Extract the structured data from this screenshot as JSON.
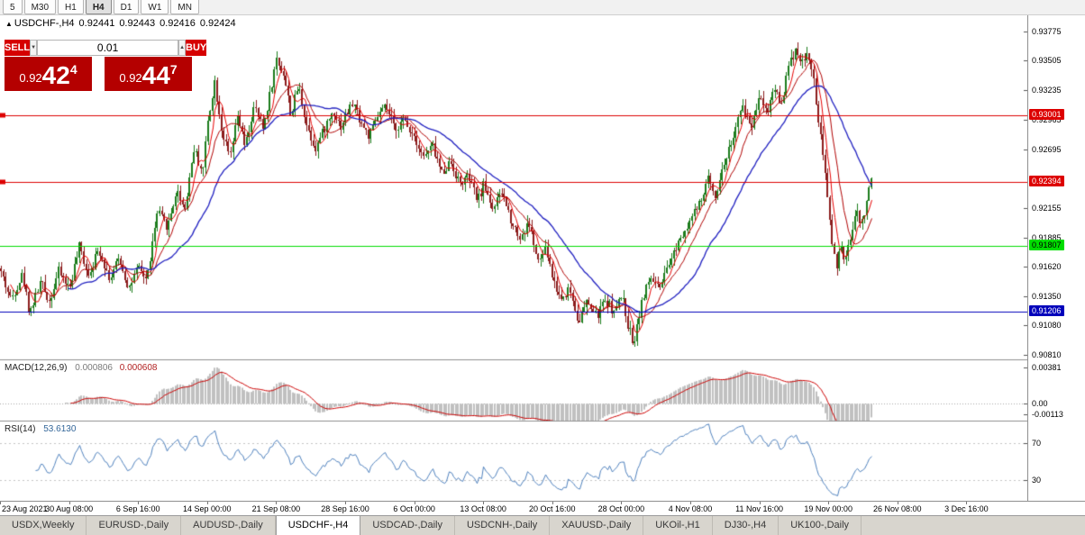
{
  "toolbar": {
    "timeframes": [
      {
        "label": "5",
        "active": false
      },
      {
        "label": "M30",
        "active": false
      },
      {
        "label": "H1",
        "active": false
      },
      {
        "label": "H4",
        "active": true
      },
      {
        "label": "D1",
        "active": false
      },
      {
        "label": "W1",
        "active": false
      },
      {
        "label": "MN",
        "active": false
      }
    ]
  },
  "chart_header": {
    "symbol": "USDCHF-,H4",
    "open": "0.92441",
    "high": "0.92443",
    "low": "0.92416",
    "close": "0.92424"
  },
  "trade_panel": {
    "sell_label": "SELL",
    "buy_label": "BUY",
    "volume": "0.01",
    "spin_down_icon": "▼",
    "spin_up_icon": "▲",
    "collapse_icon": "▲",
    "sell_price": {
      "prefix": "0.92",
      "big": "42",
      "sup": "4"
    },
    "buy_price": {
      "prefix": "0.92",
      "big": "44",
      "sup": "7"
    }
  },
  "indicators": {
    "macd": {
      "name": "MACD(12,26,9)",
      "value_main": "0.000806",
      "value_signal": "0.000608"
    },
    "rsi": {
      "name": "RSI(14)",
      "value": "53.6130"
    }
  },
  "tabs": [
    {
      "label": "USDX,Weekly",
      "active": false
    },
    {
      "label": "EURUSD-,Daily",
      "active": false
    },
    {
      "label": "AUDUSD-,Daily",
      "active": false
    },
    {
      "label": "USDCHF-,H4",
      "active": true
    },
    {
      "label": "USDCAD-,Daily",
      "active": false
    },
    {
      "label": "USDCNH-,Daily",
      "active": false
    },
    {
      "label": "XAUUSD-,Daily",
      "active": false
    },
    {
      "label": "UKOil-,H1",
      "active": false
    },
    {
      "label": "DJ30-,H4",
      "active": false
    },
    {
      "label": "UK100-,Daily",
      "active": false
    }
  ],
  "chart_data": {
    "type": "candlestick",
    "symbol": "USDCHF",
    "timeframe": "H4",
    "bars": 380,
    "last_close": 0.92424,
    "price_axis": {
      "min": 0.9077,
      "max": 0.9392,
      "ticks": [
        "0.93775",
        "0.93505",
        "0.93235",
        "0.92965",
        "0.92695",
        "0.92155",
        "0.91885",
        "0.91620",
        "0.91350",
        "0.91080",
        "0.90810"
      ]
    },
    "hlines": [
      {
        "value": 0.93001,
        "label": "0.93001",
        "color": "#dd0000",
        "text_color": "#ffffff",
        "handle": true
      },
      {
        "value": 0.92394,
        "label": "0.92394",
        "color": "#dd0000",
        "text_color": "#ffffff",
        "handle": true
      },
      {
        "value": 0.91807,
        "label": "0.91807",
        "color": "#00dd00",
        "text_color": "#000000",
        "handle": false
      },
      {
        "value": 0.91206,
        "label": "0.91206",
        "color": "#0000bb",
        "text_color": "#ffffff",
        "handle": false
      }
    ],
    "macd_axis": {
      "min": -0.00175,
      "max": 0.00445,
      "ticks": [
        "0.00381",
        "0.00",
        "-0.00113"
      ],
      "tick_values": [
        0.00381,
        0,
        -0.00113
      ]
    },
    "rsi_axis": {
      "min": 8,
      "max": 92,
      "ticks": [
        70,
        30
      ]
    },
    "time_axis": {
      "labels": [
        "23 Aug 2021",
        "30 Aug 08:00",
        "6 Sep 16:00",
        "14 Sep 00:00",
        "21 Sep 08:00",
        "28 Sep 16:00",
        "6 Oct 00:00",
        "13 Oct 08:00",
        "20 Oct 16:00",
        "28 Oct 00:00",
        "4 Nov 08:00",
        "11 Nov 16:00",
        "19 Nov 00:00",
        "26 Nov 08:00",
        "3 Dec 16:00"
      ]
    },
    "colors": {
      "up": "#1c7c1c",
      "down": "#8b1c1c",
      "ma_fast": "#e60000",
      "ma_mid": "#b00000",
      "ma_slow": "#2020c0",
      "macd_hist": "#c0c0c0",
      "macd_signal": "#cc0000",
      "rsi_line": "#4f81bd"
    },
    "price_path": [
      [
        0,
        0.916
      ],
      [
        12,
        0.9132
      ],
      [
        25,
        0.9155
      ],
      [
        33,
        0.912
      ],
      [
        45,
        0.9148
      ],
      [
        55,
        0.913
      ],
      [
        65,
        0.9158
      ],
      [
        77,
        0.9142
      ],
      [
        88,
        0.918
      ],
      [
        98,
        0.9155
      ],
      [
        110,
        0.9178
      ],
      [
        122,
        0.915
      ],
      [
        132,
        0.917
      ],
      [
        143,
        0.9142
      ],
      [
        153,
        0.916
      ],
      [
        163,
        0.915
      ],
      [
        175,
        0.9212
      ],
      [
        186,
        0.9198
      ],
      [
        196,
        0.9232
      ],
      [
        205,
        0.9215
      ],
      [
        215,
        0.927
      ],
      [
        225,
        0.9248
      ],
      [
        230,
        0.9292
      ],
      [
        238,
        0.9332
      ],
      [
        246,
        0.9288
      ],
      [
        255,
        0.926
      ],
      [
        264,
        0.93
      ],
      [
        272,
        0.927
      ],
      [
        282,
        0.9308
      ],
      [
        292,
        0.9288
      ],
      [
        300,
        0.9322
      ],
      [
        307,
        0.9352
      ],
      [
        315,
        0.9338
      ],
      [
        323,
        0.93
      ],
      [
        331,
        0.9328
      ],
      [
        340,
        0.9292
      ],
      [
        350,
        0.927
      ],
      [
        360,
        0.9288
      ],
      [
        370,
        0.9305
      ],
      [
        378,
        0.929
      ],
      [
        383,
        0.93
      ],
      [
        392,
        0.9312
      ],
      [
        400,
        0.9295
      ],
      [
        410,
        0.928
      ],
      [
        418,
        0.9298
      ],
      [
        428,
        0.9308
      ],
      [
        438,
        0.9288
      ],
      [
        448,
        0.9296
      ],
      [
        460,
        0.9282
      ],
      [
        470,
        0.9262
      ],
      [
        480,
        0.9272
      ],
      [
        490,
        0.9248
      ],
      [
        500,
        0.9258
      ],
      [
        510,
        0.9238
      ],
      [
        520,
        0.9244
      ],
      [
        530,
        0.9222
      ],
      [
        537,
        0.9238
      ],
      [
        547,
        0.9215
      ],
      [
        557,
        0.923
      ],
      [
        567,
        0.9205
      ],
      [
        577,
        0.9188
      ],
      [
        587,
        0.9202
      ],
      [
        597,
        0.9165
      ],
      [
        606,
        0.9178
      ],
      [
        613,
        0.9152
      ],
      [
        622,
        0.9132
      ],
      [
        632,
        0.9142
      ],
      [
        642,
        0.9112
      ],
      [
        652,
        0.913
      ],
      [
        662,
        0.9116
      ],
      [
        672,
        0.9132
      ],
      [
        682,
        0.912
      ],
      [
        690,
        0.9136
      ],
      [
        697,
        0.9108
      ],
      [
        703,
        0.9092
      ],
      [
        712,
        0.913
      ],
      [
        722,
        0.9152
      ],
      [
        732,
        0.914
      ],
      [
        742,
        0.9162
      ],
      [
        752,
        0.9185
      ],
      [
        766,
        0.9205
      ],
      [
        776,
        0.9218
      ],
      [
        786,
        0.9242
      ],
      [
        794,
        0.9228
      ],
      [
        804,
        0.9258
      ],
      [
        814,
        0.9282
      ],
      [
        824,
        0.9308
      ],
      [
        834,
        0.929
      ],
      [
        843,
        0.9322
      ],
      [
        851,
        0.9302
      ],
      [
        859,
        0.9328
      ],
      [
        867,
        0.931
      ],
      [
        875,
        0.9345
      ],
      [
        883,
        0.9362
      ],
      [
        891,
        0.9348
      ],
      [
        897,
        0.9358
      ],
      [
        903,
        0.933
      ],
      [
        909,
        0.929
      ],
      [
        915,
        0.925
      ],
      [
        919,
        0.9222
      ],
      [
        924,
        0.918
      ],
      [
        928,
        0.9162
      ],
      [
        933,
        0.9178
      ],
      [
        938,
        0.9165
      ],
      [
        944,
        0.919
      ],
      [
        950,
        0.9212
      ],
      [
        956,
        0.92
      ],
      [
        962,
        0.9225
      ],
      [
        968,
        0.9242
      ]
    ]
  }
}
